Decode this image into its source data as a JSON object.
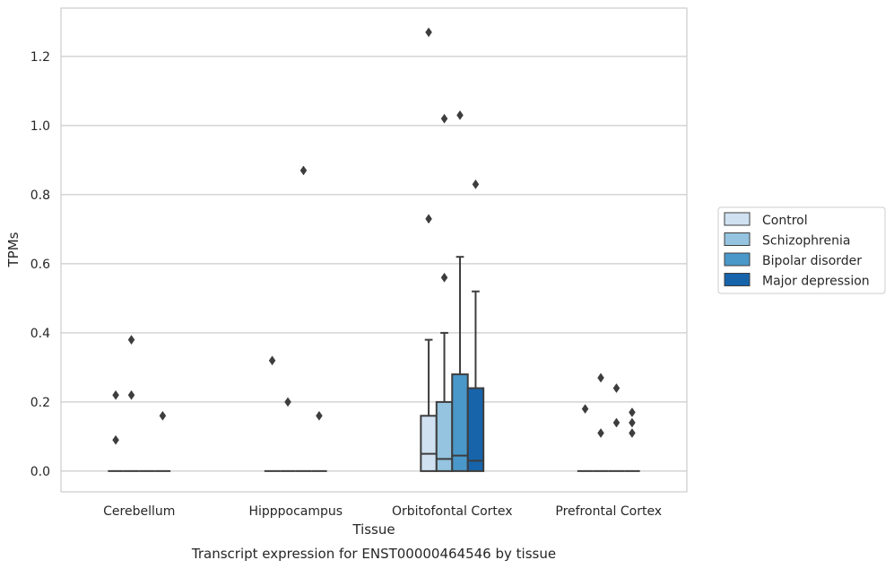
{
  "chart_data": {
    "type": "box",
    "title": "",
    "caption": "Transcript expression for ENST00000464546 by tissue",
    "xlabel": "Tissue",
    "ylabel": "TPMs",
    "ylim": [
      -0.06,
      1.34
    ],
    "yticks": [
      0.0,
      0.2,
      0.4,
      0.6,
      0.8,
      1.0,
      1.2
    ],
    "ytick_labels": [
      "0.0",
      "0.2",
      "0.4",
      "0.6",
      "0.8",
      "1.0",
      "1.2"
    ],
    "grid": "horizontal",
    "legend_position": "right",
    "categories": [
      "Cerebellum",
      "Hipppocampus",
      "Orbitofontal Cortex",
      "Prefrontal Cortex"
    ],
    "series": [
      {
        "name": "Control",
        "color": "#d0e1f2",
        "boxes": [
          {
            "q1": 0.0,
            "median": 0.0,
            "q3": 0.0,
            "whisker_low": 0.0,
            "whisker_high": 0.0,
            "outliers": [
              0.09,
              0.22
            ]
          },
          {
            "q1": 0.0,
            "median": 0.0,
            "q3": 0.0,
            "whisker_low": 0.0,
            "whisker_high": 0.0,
            "outliers": [
              0.32
            ]
          },
          {
            "q1": 0.0,
            "median": 0.05,
            "q3": 0.16,
            "whisker_low": 0.0,
            "whisker_high": 0.38,
            "outliers": [
              0.73,
              1.27
            ]
          },
          {
            "q1": 0.0,
            "median": 0.0,
            "q3": 0.0,
            "whisker_low": 0.0,
            "whisker_high": 0.0,
            "outliers": [
              0.18
            ]
          }
        ]
      },
      {
        "name": "Schizophrenia",
        "color": "#94c4df",
        "boxes": [
          {
            "q1": 0.0,
            "median": 0.0,
            "q3": 0.0,
            "whisker_low": 0.0,
            "whisker_high": 0.0,
            "outliers": [
              0.22,
              0.38
            ]
          },
          {
            "q1": 0.0,
            "median": 0.0,
            "q3": 0.0,
            "whisker_low": 0.0,
            "whisker_high": 0.0,
            "outliers": [
              0.2
            ]
          },
          {
            "q1": 0.0,
            "median": 0.035,
            "q3": 0.2,
            "whisker_low": 0.0,
            "whisker_high": 0.4,
            "outliers": [
              0.56,
              1.02
            ]
          },
          {
            "q1": 0.0,
            "median": 0.0,
            "q3": 0.0,
            "whisker_low": 0.0,
            "whisker_high": 0.0,
            "outliers": [
              0.11,
              0.27
            ]
          }
        ]
      },
      {
        "name": "Bipolar disorder",
        "color": "#4a98c9",
        "boxes": [
          {
            "q1": 0.0,
            "median": 0.0,
            "q3": 0.0,
            "whisker_low": 0.0,
            "whisker_high": 0.0,
            "outliers": []
          },
          {
            "q1": 0.0,
            "median": 0.0,
            "q3": 0.0,
            "whisker_low": 0.0,
            "whisker_high": 0.0,
            "outliers": [
              0.87
            ]
          },
          {
            "q1": 0.0,
            "median": 0.045,
            "q3": 0.28,
            "whisker_low": 0.0,
            "whisker_high": 0.62,
            "outliers": [
              1.03
            ]
          },
          {
            "q1": 0.0,
            "median": 0.0,
            "q3": 0.0,
            "whisker_low": 0.0,
            "whisker_high": 0.0,
            "outliers": [
              0.14,
              0.24
            ]
          }
        ]
      },
      {
        "name": "Major depression",
        "color": "#1764ab",
        "boxes": [
          {
            "q1": 0.0,
            "median": 0.0,
            "q3": 0.0,
            "whisker_low": 0.0,
            "whisker_high": 0.0,
            "outliers": [
              0.16
            ]
          },
          {
            "q1": 0.0,
            "median": 0.0,
            "q3": 0.0,
            "whisker_low": 0.0,
            "whisker_high": 0.0,
            "outliers": [
              0.16
            ]
          },
          {
            "q1": 0.0,
            "median": 0.03,
            "q3": 0.24,
            "whisker_low": 0.0,
            "whisker_high": 0.52,
            "outliers": [
              0.83
            ]
          },
          {
            "q1": 0.0,
            "median": 0.0,
            "q3": 0.0,
            "whisker_low": 0.0,
            "whisker_high": 0.0,
            "outliers": [
              0.11,
              0.14,
              0.17
            ]
          }
        ]
      }
    ]
  }
}
